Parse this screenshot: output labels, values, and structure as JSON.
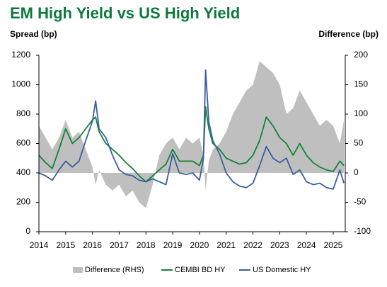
{
  "chart_data": {
    "type": "line",
    "title": "EM High Yield vs US High Yield",
    "y_label": "Spread (bp)",
    "y2_label": "Difference (bp)",
    "x": [
      2014.0,
      2014.25,
      2014.5,
      2014.75,
      2015.0,
      2015.25,
      2015.5,
      2015.75,
      2016.0,
      2016.12,
      2016.25,
      2016.5,
      2016.75,
      2017.0,
      2017.25,
      2017.5,
      2017.75,
      2018.0,
      2018.25,
      2018.5,
      2018.75,
      2019.0,
      2019.25,
      2019.5,
      2019.75,
      2020.0,
      2020.15,
      2020.23,
      2020.35,
      2020.5,
      2020.75,
      2021.0,
      2021.25,
      2021.5,
      2021.75,
      2022.0,
      2022.25,
      2022.5,
      2022.75,
      2023.0,
      2023.25,
      2023.5,
      2023.75,
      2024.0,
      2024.25,
      2024.5,
      2024.75,
      2025.0,
      2025.25,
      2025.4
    ],
    "xlim": [
      2014,
      2025.45
    ],
    "xticks": [
      2014,
      2015,
      2016,
      2017,
      2018,
      2019,
      2020,
      2021,
      2022,
      2023,
      2024,
      2025
    ],
    "ylim": [
      0,
      1200
    ],
    "yticks": [
      0,
      200,
      400,
      600,
      800,
      1000,
      1200
    ],
    "y2lim": [
      -100,
      200
    ],
    "y2ticks": [
      -100,
      -50,
      0,
      50,
      100,
      150,
      200
    ],
    "series": [
      {
        "name": "Difference (RHS)",
        "type": "area",
        "axis": "y2",
        "color": "#bfbfbf",
        "values": [
          80,
          60,
          40,
          60,
          90,
          60,
          70,
          40,
          10,
          -20,
          5,
          -20,
          -30,
          -20,
          -40,
          -30,
          -50,
          -60,
          -20,
          30,
          50,
          60,
          40,
          60,
          50,
          60,
          30,
          -30,
          20,
          40,
          50,
          70,
          100,
          120,
          140,
          150,
          190,
          180,
          170,
          150,
          100,
          110,
          140,
          120,
          100,
          80,
          90,
          80,
          50,
          90
        ]
      },
      {
        "name": "CEMBI BD HY",
        "type": "line",
        "color": "#13843a",
        "values": [
          520,
          470,
          430,
          560,
          700,
          600,
          640,
          700,
          760,
          780,
          680,
          600,
          560,
          520,
          470,
          430,
          380,
          340,
          380,
          420,
          460,
          560,
          480,
          480,
          480,
          450,
          520,
          850,
          700,
          600,
          560,
          500,
          480,
          460,
          470,
          520,
          620,
          780,
          720,
          640,
          600,
          520,
          600,
          520,
          470,
          440,
          420,
          410,
          480,
          450
        ]
      },
      {
        "name": "US Domestic HY",
        "type": "line",
        "color": "#3b5f9e",
        "values": [
          400,
          380,
          350,
          420,
          480,
          440,
          480,
          620,
          750,
          890,
          700,
          640,
          520,
          420,
          390,
          380,
          350,
          340,
          360,
          340,
          320,
          530,
          400,
          390,
          400,
          350,
          500,
          1100,
          750,
          620,
          530,
          400,
          340,
          310,
          300,
          330,
          450,
          580,
          500,
          470,
          500,
          390,
          420,
          340,
          320,
          330,
          300,
          290,
          420,
          330
        ]
      }
    ]
  }
}
